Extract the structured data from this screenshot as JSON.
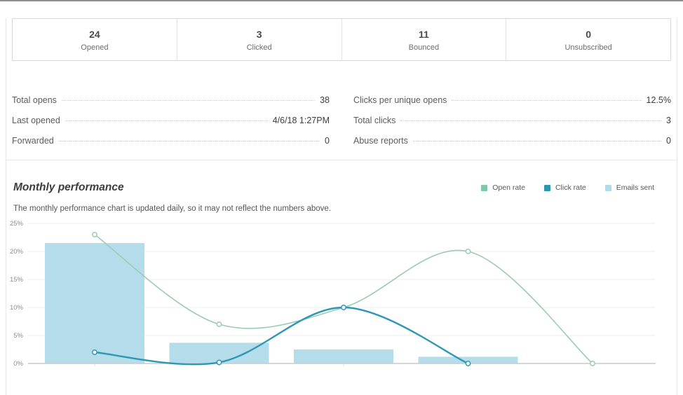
{
  "summary_cards": [
    {
      "value": "24",
      "label": "Opened"
    },
    {
      "value": "3",
      "label": "Clicked"
    },
    {
      "value": "11",
      "label": "Bounced"
    },
    {
      "value": "0",
      "label": "Unsubscribed"
    }
  ],
  "details": {
    "left": [
      {
        "label": "Total opens",
        "value": "38"
      },
      {
        "label": "Last opened",
        "value": "4/6/18 1:27PM"
      },
      {
        "label": "Forwarded",
        "value": "0"
      }
    ],
    "right": [
      {
        "label": "Clicks per unique opens",
        "value": "12.5%"
      },
      {
        "label": "Total clicks",
        "value": "3"
      },
      {
        "label": "Abuse reports",
        "value": "0"
      }
    ]
  },
  "monthly": {
    "title": "Monthly performance",
    "subtitle": "The monthly performance chart is updated daily, so it may not reflect the numbers above.",
    "legend": [
      {
        "label": "Open rate",
        "color": "#7ec9a8"
      },
      {
        "label": "Click rate",
        "color": "#2a96b4"
      },
      {
        "label": "Emails sent",
        "color": "#aedcec"
      }
    ]
  },
  "chart_data": {
    "type": "bar",
    "subtype": "mixed bar + smoothed lines",
    "title": "Monthly performance",
    "x_count": 5,
    "x_labels": [
      "",
      "",
      "",
      "",
      ""
    ],
    "ylim": [
      0,
      25
    ],
    "yticks": [
      "0%",
      "5%",
      "10%",
      "15%",
      "20%",
      "25%"
    ],
    "grid": true,
    "legend_position": "top-right",
    "series": [
      {
        "name": "Emails sent",
        "type": "bar",
        "color": "#b5dcea",
        "values": [
          21.5,
          3.7,
          2.5,
          1.2,
          0
        ]
      },
      {
        "name": "Open rate",
        "type": "line",
        "color": "#9ccbb4",
        "width": 1.6,
        "values": [
          23,
          7,
          10,
          20,
          0
        ]
      },
      {
        "name": "Click rate",
        "type": "line",
        "color": "#2e98b4",
        "width": 2.4,
        "values": [
          2,
          0.2,
          10,
          0,
          null
        ]
      }
    ],
    "colors": {
      "gridline": "#ededed",
      "axis": "#c9c9c9",
      "tick_label": "#8c8c8c"
    }
  }
}
